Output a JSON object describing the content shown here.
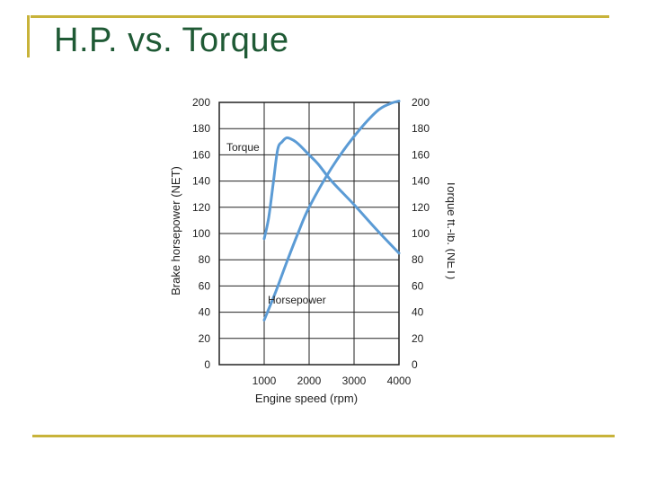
{
  "slide": {
    "title": "H.P. vs. Torque",
    "accent_color": "#c8b33a",
    "title_color": "#1f5a35"
  },
  "chart_data": {
    "type": "line",
    "xlabel": "Engine speed (rpm)",
    "ylabel_left": "Brake horsepower (NET)",
    "ylabel_right": "Torque ft.-lb. (NET)",
    "x_ticks": [
      "1000",
      "2000",
      "3000",
      "4000"
    ],
    "y_ticks_left": [
      "0",
      "20",
      "40",
      "60",
      "80",
      "100",
      "120",
      "140",
      "160",
      "180",
      "200"
    ],
    "y_ticks_right": [
      "0",
      "20",
      "40",
      "60",
      "80",
      "100",
      "120",
      "140",
      "160",
      "180",
      "200"
    ],
    "xlim": [
      0,
      4000
    ],
    "ylim": [
      0,
      200
    ],
    "grid": true,
    "line_color": "#5b9bd5",
    "series": [
      {
        "name": "Torque",
        "axis": "right",
        "x": [
          1000,
          1100,
          1200,
          1300,
          1400,
          1500,
          1600,
          1700,
          1800,
          2000,
          2200,
          2500,
          3000,
          3500,
          4000
        ],
        "y": [
          96,
          112,
          138,
          164,
          170,
          173,
          172,
          170,
          167,
          160,
          153,
          140,
          122,
          103,
          85
        ]
      },
      {
        "name": "Horsepower",
        "axis": "left",
        "x": [
          1000,
          1250,
          1500,
          1750,
          2000,
          2500,
          3000,
          3500,
          3800,
          4000
        ],
        "y": [
          34,
          55,
          78,
          100,
          120,
          150,
          174,
          193,
          199,
          201
        ]
      }
    ]
  }
}
